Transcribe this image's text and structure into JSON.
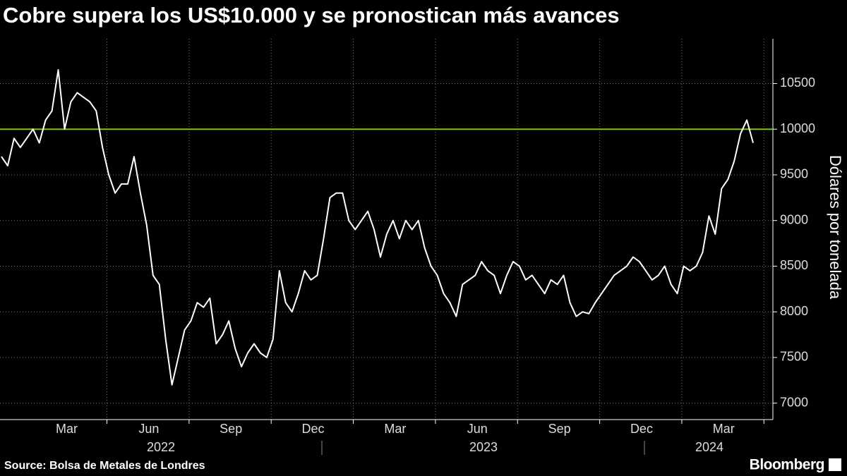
{
  "chart_data": {
    "type": "line",
    "title": "Cobre supera los US$10.000 y se pronostican más avances",
    "y_axis_label": "Dólares por tonelada",
    "source": "Source: Bolsa de Metales de Londres",
    "brand": "Bloomberg",
    "color": "#ffffff",
    "categories": [
      null,
      null,
      null,
      null,
      null,
      null,
      null,
      null,
      null,
      null,
      "Mar",
      null,
      null,
      null,
      null,
      null,
      null,
      null,
      null,
      null,
      null,
      null,
      null,
      "Jun",
      null,
      null,
      null,
      null,
      null,
      null,
      null,
      null,
      null,
      null,
      null,
      null,
      "Sep",
      null,
      null,
      null,
      null,
      null,
      null,
      null,
      null,
      null,
      null,
      null,
      null,
      "Dec",
      null,
      null,
      null,
      null,
      null,
      null,
      null,
      null,
      null,
      null,
      null,
      null,
      "Mar",
      null,
      null,
      null,
      null,
      null,
      null,
      null,
      null,
      null,
      null,
      null,
      null,
      "Jun",
      null,
      null,
      null,
      null,
      null,
      null,
      null,
      null,
      null,
      null,
      null,
      null,
      "Sep",
      null,
      null,
      null,
      null,
      null,
      null,
      null,
      null,
      null,
      null,
      null,
      null,
      "Dec",
      null,
      null,
      null,
      null,
      null,
      null,
      null,
      null,
      null,
      null,
      null,
      null,
      "Mar",
      null,
      null,
      null,
      null,
      null
    ],
    "values": [
      9700,
      9600,
      9900,
      9800,
      9900,
      10000,
      9850,
      10100,
      10200,
      10650,
      10000,
      10300,
      10400,
      10350,
      10300,
      10200,
      9800,
      9500,
      9300,
      9400,
      9400,
      9700,
      9300,
      8950,
      8400,
      8300,
      7700,
      7200,
      7500,
      7800,
      7900,
      8100,
      8050,
      8150,
      7650,
      7750,
      7900,
      7600,
      7400,
      7550,
      7650,
      7550,
      7500,
      7700,
      8450,
      8100,
      8000,
      8200,
      8450,
      8350,
      8400,
      8800,
      9250,
      9300,
      9300,
      9000,
      8900,
      9000,
      9100,
      8900,
      8600,
      8850,
      9000,
      8800,
      9000,
      8900,
      9000,
      8700,
      8500,
      8400,
      8200,
      8100,
      7950,
      8300,
      8350,
      8400,
      8550,
      8450,
      8400,
      8200,
      8400,
      8550,
      8500,
      8350,
      8400,
      8300,
      8200,
      8350,
      8300,
      8400,
      8100,
      7950,
      8000,
      7980,
      8100,
      8200,
      8300,
      8400,
      8450,
      8500,
      8600,
      8550,
      8450,
      8350,
      8400,
      8500,
      8300,
      8200,
      8500,
      8450,
      8500,
      8650,
      9050,
      8850,
      9350,
      9450,
      9650,
      9950,
      10100,
      9850
    ],
    "year_labels": [
      "2022",
      "2023",
      "2024"
    ],
    "reference_line": {
      "value": 10000,
      "color": "#7ac70c"
    },
    "ylim": [
      6820,
      10990
    ],
    "yticks": [
      7000,
      7500,
      8000,
      8500,
      9000,
      9500,
      10000,
      10500
    ],
    "grid": true
  }
}
